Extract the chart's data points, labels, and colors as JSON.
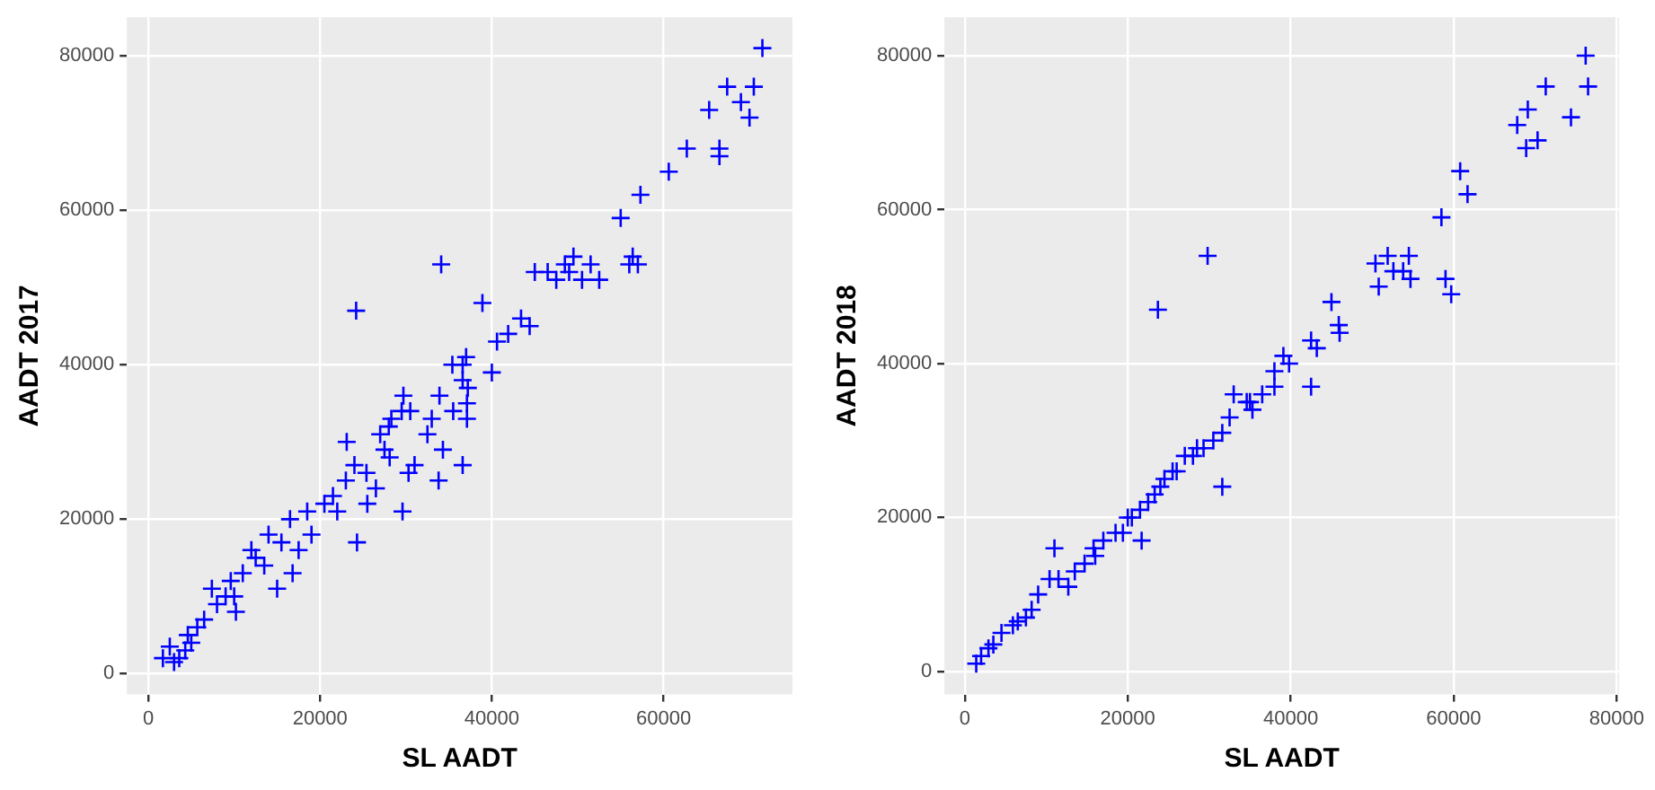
{
  "chart_data": [
    {
      "type": "scatter",
      "xlabel": "SL AADT",
      "ylabel": "AADT 2017",
      "marker": "cross",
      "grid": true,
      "legend": false,
      "xlim": [
        -2500,
        75000
      ],
      "ylim": [
        -2700,
        85000
      ],
      "xticks": [
        0,
        20000,
        40000,
        60000
      ],
      "yticks": [
        0,
        20000,
        40000,
        60000,
        80000
      ],
      "series": [
        {
          "color": "#0000ff",
          "x": [
            71500,
            67400,
            70500,
            69000,
            70000,
            65300,
            66500,
            66500,
            62700,
            60600,
            57300,
            55000,
            56400,
            57000,
            56000,
            45000,
            46500,
            47500,
            48500,
            49500,
            50500,
            51500,
            52500,
            49000,
            34100,
            24200,
            38900,
            40600,
            41900,
            43400,
            44400,
            35400,
            36600,
            37000,
            36600,
            40000,
            37200,
            29700,
            29500,
            33900,
            37100,
            37100,
            35500,
            34300,
            33800,
            36600,
            29600,
            24300,
            30300,
            23100,
            28000,
            28300,
            28100,
            25400,
            23000,
            25500,
            21500,
            19000,
            18500,
            16500,
            15500,
            14000,
            15000,
            16800,
            12500,
            12000,
            11000,
            10000,
            10200,
            9600,
            8000,
            7400,
            6500,
            4600,
            5700,
            4300,
            3600,
            1700,
            2500,
            20500,
            22000,
            26500,
            27500,
            31000,
            32500,
            17500,
            13500,
            9000,
            5000,
            3000,
            24000,
            27000,
            30500,
            33000
          ],
          "values": [
            81000,
            76000,
            76000,
            74000,
            72000,
            73000,
            68000,
            67000,
            68000,
            65000,
            62000,
            59000,
            54000,
            53000,
            53000,
            52000,
            52000,
            51000,
            53000,
            54000,
            51000,
            53000,
            51000,
            52000,
            53000,
            47000,
            48000,
            43000,
            44000,
            46000,
            45000,
            40000,
            40000,
            41000,
            38000,
            39000,
            37000,
            36000,
            34000,
            36000,
            35000,
            33000,
            34000,
            29000,
            25000,
            27000,
            21000,
            17000,
            26000,
            30000,
            32000,
            33000,
            28000,
            26000,
            25000,
            22000,
            23000,
            18000,
            21000,
            20000,
            17000,
            18000,
            11000,
            13000,
            15000,
            16000,
            13000,
            10000,
            8000,
            12000,
            9000,
            11000,
            7000,
            5000,
            6000,
            3000,
            2000,
            2000,
            3500,
            22000,
            21000,
            24000,
            29000,
            27000,
            31000,
            16000,
            14000,
            10000,
            4000,
            1500,
            27000,
            31000,
            34000,
            33000
          ]
        }
      ]
    },
    {
      "type": "scatter",
      "xlabel": "SL AADT",
      "ylabel": "AADT 2018",
      "marker": "cross",
      "grid": true,
      "legend": false,
      "xlim": [
        -2500,
        80300
      ],
      "ylim": [
        -3000,
        85000
      ],
      "xticks": [
        0,
        20000,
        40000,
        60000,
        80000
      ],
      "yticks": [
        0,
        20000,
        40000,
        60000,
        80000
      ],
      "series": [
        {
          "color": "#0000ff",
          "x": [
            76200,
            76500,
            71300,
            74400,
            69100,
            67800,
            68900,
            70300,
            60800,
            61700,
            58500,
            59000,
            59700,
            50400,
            50800,
            52600,
            51900,
            54500,
            53800,
            54700,
            29800,
            23700,
            45000,
            45900,
            46000,
            42500,
            43200,
            39100,
            39800,
            38000,
            38000,
            42500,
            33000,
            34600,
            35300,
            31600,
            29300,
            31600,
            27000,
            25500,
            23300,
            21500,
            19400,
            21700,
            15800,
            14700,
            12700,
            11000,
            10400,
            9000,
            7500,
            5900,
            4500,
            2900,
            1400,
            30500,
            28000,
            26000,
            24000,
            22500,
            20500,
            18500,
            17000,
            13500,
            11500,
            8200,
            6500,
            3500,
            2000,
            32500,
            35000,
            36500,
            16000,
            20000,
            24500,
            28500
          ],
          "values": [
            80000,
            76000,
            76000,
            72000,
            73000,
            71000,
            68000,
            69000,
            65000,
            62000,
            59000,
            51000,
            49000,
            53000,
            50000,
            52000,
            54000,
            54000,
            52000,
            51000,
            54000,
            47000,
            48000,
            45000,
            44000,
            43000,
            42000,
            41000,
            40000,
            39000,
            37000,
            37000,
            36000,
            35000,
            34000,
            31000,
            29000,
            24000,
            28000,
            26000,
            23000,
            21000,
            18000,
            17000,
            16000,
            14000,
            11000,
            16000,
            12000,
            10000,
            7000,
            6000,
            5000,
            3000,
            1000,
            30000,
            28000,
            26000,
            24000,
            22000,
            20000,
            18000,
            17000,
            13000,
            12000,
            8000,
            6500,
            3500,
            2000,
            33000,
            35000,
            36000,
            15000,
            20000,
            25000,
            29000
          ]
        }
      ]
    }
  ]
}
